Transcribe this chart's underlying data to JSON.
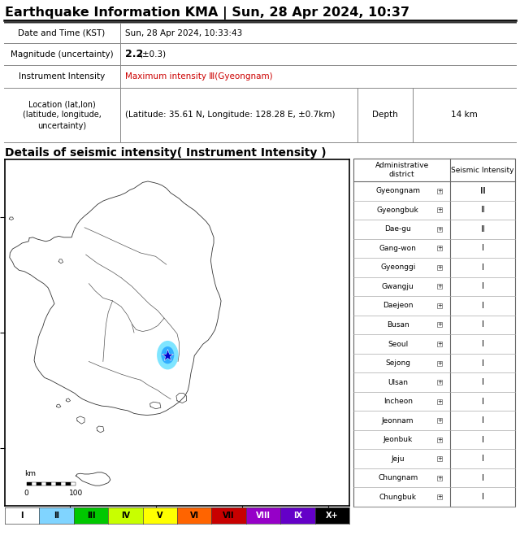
{
  "title": "Earthquake Information KMA | Sun, 28 Apr 2024, 10:37",
  "date_time": "Sun, 28 Apr 2024, 10:33:43",
  "magnitude": "2.2",
  "magnitude_uncertainty": "(±0.3)",
  "instrument_intensity": "Maximum intensity Ⅲ(Gyeongnam)",
  "location": "(Latitude: 35.61 N, Longitude: 128.28 E, ±0.7km)",
  "depth": "14 km",
  "section_title": "Details of seismic intensity( Instrument Intensity )",
  "epicenter_lat": 35.61,
  "epicenter_lon": 128.28,
  "map_xlim": [
    124.5,
    132.5
  ],
  "map_ylim": [
    33.0,
    39.0
  ],
  "intensity_colors": [
    "#ffffff",
    "#80d4ff",
    "#00c800",
    "#c8ff00",
    "#ffff00",
    "#ff6400",
    "#c80000",
    "#9600c8",
    "#6400c8",
    "#000000"
  ],
  "intensity_labels": [
    "I",
    "II",
    "III",
    "IV",
    "V",
    "VI",
    "VII",
    "VIII",
    "IX",
    "X+"
  ],
  "districts": [
    "Gyeongnam",
    "Gyeongbuk",
    "Dae-gu",
    "Gang-won",
    "Gyeonggi",
    "Gwangju",
    "Daejeon",
    "Busan",
    "Seoul",
    "Sejong",
    "Ulsan",
    "Incheon",
    "Jeonnam",
    "Jeonbuk",
    "Jeju",
    "Chungnam",
    "Chungbuk"
  ],
  "district_intensities": [
    "Ⅲ",
    "Ⅱ",
    "Ⅱ",
    "I",
    "I",
    "I",
    "I",
    "I",
    "I",
    "I",
    "I",
    "I",
    "I",
    "I",
    "I",
    "I",
    "I"
  ],
  "bg_color": "#ffffff",
  "red_color": "#cc0000"
}
